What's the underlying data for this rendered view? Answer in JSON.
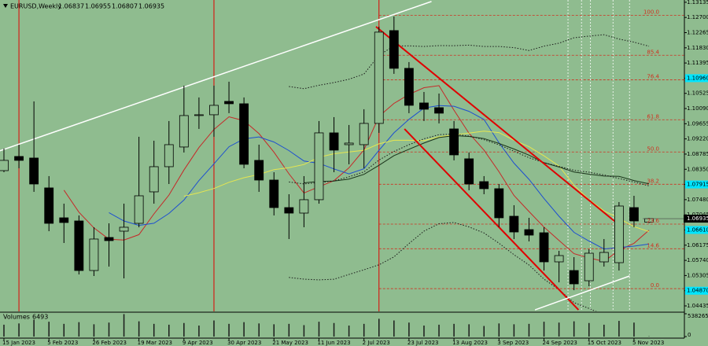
{
  "chart_data": {
    "type": "candlestick",
    "title": "EURUSD,Weekly",
    "background": "#8fbc8f",
    "bull_color": "#8fbc8f",
    "bear_color": "#000000",
    "categories": [
      "15 Jan 2023",
      null,
      null,
      "5 Feb 2023",
      null,
      null,
      "26 Feb 2023",
      null,
      null,
      "19 Mar 2023",
      null,
      null,
      "9 Apr 2023",
      null,
      null,
      "30 Apr 2023",
      null,
      null,
      "21 May 2023",
      null,
      null,
      "11 Jun 2023",
      null,
      null,
      "2 Jul 2023",
      null,
      null,
      "23 Jul 2023",
      null,
      null,
      "13 Aug 2023",
      null,
      null,
      "3 Sep 2023",
      null,
      null,
      "24 Sep 2023",
      null,
      null,
      "15 Oct 2023",
      null,
      null,
      "5 Nov 2023",
      null
    ],
    "candles": [
      {
        "open": 1.08311,
        "high": 1.08943,
        "low": 1.08266,
        "close": 1.08605
      },
      {
        "open": 1.08717,
        "high": 1.09055,
        "low": 1.08379,
        "close": 1.08605
      },
      {
        "open": 1.08672,
        "high": 1.10295,
        "low": 1.07703,
        "close": 1.07928
      },
      {
        "open": 1.07816,
        "high": 1.08154,
        "low": 1.06576,
        "close": 1.06801
      },
      {
        "open": 1.06959,
        "high": 1.07365,
        "low": 1.06238,
        "close": 1.06824
      },
      {
        "open": 1.06869,
        "high": 1.07027,
        "low": 1.05336,
        "close": 1.05449
      },
      {
        "open": 1.05449,
        "high": 1.06689,
        "low": 1.05291,
        "close": 1.06351
      },
      {
        "open": 1.06396,
        "high": 1.06801,
        "low": 1.05562,
        "close": 1.06305
      },
      {
        "open": 1.06576,
        "high": 1.07365,
        "low": 1.05224,
        "close": 1.06689
      },
      {
        "open": 1.06801,
        "high": 1.09281,
        "low": 1.06689,
        "close": 1.0759
      },
      {
        "open": 1.07703,
        "high": 1.09168,
        "low": 1.07365,
        "close": 1.08424
      },
      {
        "open": 1.08424,
        "high": 1.09732,
        "low": 1.07928,
        "close": 1.09055
      },
      {
        "open": 1.08988,
        "high": 1.10746,
        "low": 1.0883,
        "close": 1.09889
      },
      {
        "open": 1.09889,
        "high": 1.10408,
        "low": 1.09506,
        "close": 1.09912
      },
      {
        "open": 1.09912,
        "high": 1.10746,
        "low": 1.09281,
        "close": 1.10182
      },
      {
        "open": 1.10295,
        "high": 1.10859,
        "low": 1.09957,
        "close": 1.10227
      },
      {
        "open": 1.10227,
        "high": 1.10408,
        "low": 1.08379,
        "close": 1.08492
      },
      {
        "open": 1.08605,
        "high": 1.09055,
        "low": 1.07703,
        "close": 1.08041
      },
      {
        "open": 1.08041,
        "high": 1.08266,
        "low": 1.07027,
        "close": 1.07252
      },
      {
        "open": 1.07252,
        "high": 1.07635,
        "low": 1.06351,
        "close": 1.07094
      },
      {
        "open": 1.07094,
        "high": 1.08154,
        "low": 1.06689,
        "close": 1.07478
      },
      {
        "open": 1.07478,
        "high": 1.09732,
        "low": 1.07365,
        "close": 1.09393
      },
      {
        "open": 1.09393,
        "high": 1.09844,
        "low": 1.08266,
        "close": 1.08898
      },
      {
        "open": 1.09055,
        "high": 1.09619,
        "low": 1.08492,
        "close": 1.091
      },
      {
        "open": 1.09055,
        "high": 1.1007,
        "low": 1.08379,
        "close": 1.09664
      },
      {
        "open": 1.09664,
        "high": 1.12436,
        "low": 1.09393,
        "close": 1.12279
      },
      {
        "open": 1.12324,
        "high": 1.12729,
        "low": 1.11084,
        "close": 1.11242
      },
      {
        "open": 1.11242,
        "high": 1.11422,
        "low": 1.09957,
        "close": 1.10182
      },
      {
        "open": 1.1025,
        "high": 1.10565,
        "low": 1.09732,
        "close": 1.1007
      },
      {
        "open": 1.10115,
        "high": 1.1052,
        "low": 1.09664,
        "close": 1.09957
      },
      {
        "open": 1.09506,
        "high": 1.09732,
        "low": 1.08605,
        "close": 1.08762
      },
      {
        "open": 1.0865,
        "high": 1.0883,
        "low": 1.07748,
        "close": 1.07928
      },
      {
        "open": 1.07996,
        "high": 1.08154,
        "low": 1.07635,
        "close": 1.07793
      },
      {
        "open": 1.07793,
        "high": 1.07928,
        "low": 1.06689,
        "close": 1.06959
      },
      {
        "open": 1.07004,
        "high": 1.0732,
        "low": 1.06351,
        "close": 1.06553
      },
      {
        "open": 1.06621,
        "high": 1.06959,
        "low": 1.06283,
        "close": 1.06463
      },
      {
        "open": 1.06531,
        "high": 1.06689,
        "low": 1.05449,
        "close": 1.05697
      },
      {
        "open": 1.05697,
        "high": 1.06012,
        "low": 1.05111,
        "close": 1.05877
      },
      {
        "open": 1.05449,
        "high": 1.05832,
        "low": 1.04885,
        "close": 1.05066
      },
      {
        "open": 1.05156,
        "high": 1.06057,
        "low": 1.04998,
        "close": 1.05945
      },
      {
        "open": 1.05697,
        "high": 1.06351,
        "low": 1.05562,
        "close": 1.05967
      },
      {
        "open": 1.05674,
        "high": 1.0741,
        "low": 1.05449,
        "close": 1.07297
      },
      {
        "open": 1.07252,
        "high": 1.0759,
        "low": 1.06689,
        "close": 1.06869
      },
      {
        "open": 1.06837,
        "high": 1.06955,
        "low": 1.06807,
        "close": 1.06935
      }
    ],
    "ylim": [
      1.043,
      1.132
    ],
    "yticks": [
      1.13135,
      {
        "value": 1.127,
        "label": "1.12700"
      },
      1.12265,
      {
        "value": 1.1183,
        "label": "1.11830"
      },
      1.11395,
      {
        "value": 1.1096,
        "label": "1.10960"
      },
      1.10525,
      {
        "value": 1.1009,
        "label": "1.10090"
      },
      1.09655,
      {
        "value": 1.0922,
        "label": "1.09220"
      },
      1.08785,
      {
        "value": 1.0835,
        "label": "1.08350"
      },
      1.07915,
      {
        "value": 1.0748,
        "label": "1.07480"
      },
      1.07045,
      {
        "value": 1.0661,
        "label": "1.06610"
      },
      1.06175,
      {
        "value": 1.0574,
        "label": "1.05740"
      },
      1.05305,
      {
        "value": 1.0487,
        "label": "1.04870"
      },
      1.04435
    ],
    "highlighted_ticks": [
      5,
      12,
      15,
      19
    ],
    "highlight_color": "#00e5ff",
    "overlays": [
      {
        "kind": "sma",
        "period": 5,
        "color": "#c62828",
        "dash": false
      },
      {
        "kind": "sma",
        "period": 8,
        "color": "#1e4fd0",
        "dash": false
      },
      {
        "kind": "sma",
        "period": 13,
        "color": "#e6e650",
        "dash": false
      },
      {
        "kind": "sma",
        "period": 21,
        "color": "#1a331a",
        "dash": false
      },
      {
        "kind": "bands",
        "period": 20,
        "width": 2,
        "color": "#1a1a1a",
        "dash": true
      }
    ],
    "trendlines": [
      {
        "color": "#ffffff",
        "width": 1.5,
        "points": [
          [
            -0.3,
            1.08875
          ],
          [
            28.5,
            1.13158
          ]
        ]
      },
      {
        "color": "#e00000",
        "width": 2,
        "points": [
          [
            24.8,
            1.12436
          ],
          [
            41.2,
            1.06689
          ]
        ]
      },
      {
        "color": "#e00000",
        "width": 2,
        "points": [
          [
            26.7,
            1.09506
          ],
          [
            38.3,
            1.04322
          ]
        ]
      },
      {
        "color": "#ffffff",
        "width": 1.5,
        "points": [
          [
            35.4,
            1.04322
          ],
          [
            41.7,
            1.05291
          ]
        ]
      }
    ],
    "vlines": [
      {
        "index": 1,
        "color": "#e00000",
        "dash": false
      },
      {
        "index": 14,
        "color": "#e00000",
        "dash": false
      },
      {
        "index": 25,
        "color": "#e00000",
        "dash": false
      },
      {
        "index": 37.6,
        "color": "#ffffff",
        "dash": true
      },
      {
        "index": 38.5,
        "color": "#ffffff",
        "dash": true
      },
      {
        "index": 39.1,
        "color": "#ffffff",
        "dash": true
      },
      {
        "index": 40.6,
        "color": "#ffffff",
        "dash": true
      },
      {
        "index": 41.7,
        "color": "#ffffff",
        "dash": true
      }
    ],
    "fib": [
      {
        "label": "100.0",
        "price": 1.1276
      },
      {
        "label": "85.4",
        "price": 1.11617
      },
      {
        "label": "76.4",
        "price": 1.10912
      },
      {
        "label": "61.8",
        "price": 1.09769
      },
      {
        "label": "50.0",
        "price": 1.08845
      },
      {
        "label": "38.2",
        "price": 1.07921
      },
      {
        "label": "23.6",
        "price": 1.06778
      },
      {
        "label": "14.6",
        "price": 1.06073
      },
      {
        "label": "0.0",
        "price": 1.0493
      }
    ],
    "fib_start": 25,
    "fib_color": "#d03020",
    "volume_title": "Volumes",
    "volumes": [
      280000,
      310000,
      400000,
      350000,
      300000,
      340000,
      290000,
      330000,
      530000,
      360000,
      300000,
      280000,
      320000,
      260000,
      380000,
      300000,
      340000,
      310000,
      290000,
      300000,
      270000,
      350000,
      320000,
      260000,
      300000,
      420000,
      380000,
      330000,
      260000,
      280000,
      300000,
      290000,
      250000,
      310000,
      290000,
      300000,
      350000,
      330000,
      360000,
      320000,
      280000,
      370000,
      330000,
      6493
    ],
    "vlim": [
      0,
      538265
    ],
    "vticks": [
      538265,
      0
    ],
    "volume_color": "#1a1a1a"
  }
}
